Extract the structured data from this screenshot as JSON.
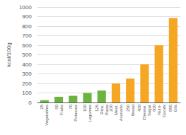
{
  "chart_data": {
    "type": "bar",
    "categories": [
      "25\nVegetables",
      "60\nFruits",
      "70\nPotatoes",
      "100\nLegumes",
      "125\nRice,\nPasta",
      "200\nMeat,\nAvocado",
      "250\nBread",
      "400\nCheese,\nSugar",
      "600\nNutri-\nGoods",
      "885\nOils"
    ],
    "values": [
      25,
      60,
      70,
      100,
      125,
      200,
      250,
      400,
      600,
      885
    ],
    "colors": [
      "#6db33f",
      "#6db33f",
      "#6db33f",
      "#6db33f",
      "#6db33f",
      "#f5a623",
      "#f5a623",
      "#f5a623",
      "#f5a623",
      "#f5a623"
    ],
    "ylabel": "kcal/100g",
    "ylim": [
      0,
      1000
    ],
    "yticks": [
      0,
      100,
      200,
      300,
      400,
      500,
      600,
      700,
      800,
      900,
      1000
    ],
    "grid": true
  }
}
